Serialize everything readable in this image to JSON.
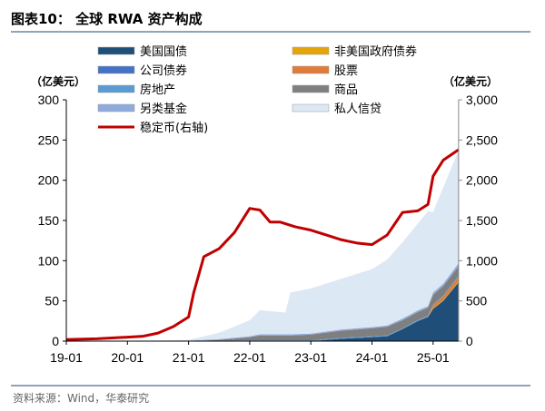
{
  "title": "图表10：  全球 RWA 资产构成",
  "source": "资料来源：Wind，华泰研究",
  "chart_data": {
    "type": "area",
    "left_unit": "（亿美元）",
    "right_unit": "（亿美元）",
    "ylim_left": [
      0,
      300
    ],
    "ylim_right": [
      0,
      3000
    ],
    "yticks_left": [
      "0",
      "50",
      "100",
      "150",
      "200",
      "250",
      "300"
    ],
    "yticks_right": [
      "0",
      "500",
      "1,000",
      "1,500",
      "2,000",
      "2,500",
      "3,000"
    ],
    "xticks": [
      "19-01",
      "20-01",
      "21-01",
      "22-01",
      "23-01",
      "24-01",
      "25-01"
    ],
    "grid": false,
    "legend_position": "top",
    "x": [
      "2019-01",
      "2020-01",
      "2021-01",
      "2021-07",
      "2022-01",
      "2022-03",
      "2022-08",
      "2022-09",
      "2023-01",
      "2023-07",
      "2024-01",
      "2024-04",
      "2024-07",
      "2024-10",
      "2024-12",
      "2025-01",
      "2025-03",
      "2025-06"
    ],
    "series": [
      {
        "name": "美国国债",
        "color": "#1f4e79",
        "values": [
          0,
          0,
          0,
          0,
          0,
          0,
          0,
          0,
          0,
          3,
          5,
          6,
          15,
          25,
          30,
          40,
          50,
          73
        ]
      },
      {
        "name": "非美国政府债券",
        "color": "#e5a50a",
        "values": [
          0,
          0,
          0,
          0,
          0,
          0,
          0,
          0,
          0,
          0,
          0,
          0,
          0,
          0,
          0.3,
          1,
          1,
          1.5
        ]
      },
      {
        "name": "公司债券",
        "color": "#4472c4",
        "values": [
          0,
          0,
          0,
          0,
          0,
          0,
          0,
          0,
          0,
          0,
          0,
          0,
          0,
          0.2,
          0.3,
          0.5,
          0.5,
          0.5
        ]
      },
      {
        "name": "股票",
        "color": "#e07b39",
        "values": [
          0,
          0,
          0,
          0,
          0,
          0,
          0,
          0,
          0,
          0,
          0,
          0,
          0,
          0,
          0,
          3,
          4,
          5
        ]
      },
      {
        "name": "房地产",
        "color": "#5b9bd5",
        "values": [
          0,
          0,
          0,
          0.5,
          1,
          1,
          1,
          1,
          1,
          1,
          1,
          1,
          1,
          1,
          1,
          1,
          1,
          1
        ]
      },
      {
        "name": "商品",
        "color": "#7f7f7f",
        "values": [
          0,
          0,
          0,
          1,
          4,
          6,
          6,
          6,
          7,
          9,
          10,
          11,
          10,
          10,
          10,
          12,
          12,
          12
        ]
      },
      {
        "name": "另类基金",
        "color": "#8faadc",
        "values": [
          0,
          0,
          0.5,
          1,
          1,
          1.5,
          1.5,
          1.5,
          1.5,
          1.5,
          1.5,
          1.5,
          2,
          2,
          2,
          3,
          3,
          4
        ]
      },
      {
        "name": "私人信贷",
        "color": "#dde8f5",
        "values": [
          0,
          0,
          1,
          8,
          20,
          30,
          27,
          52,
          56,
          63,
          72,
          82,
          95,
          108,
          118,
          100,
          120,
          140
        ]
      }
    ],
    "line": {
      "name": "稳定币(右轴)",
      "color": "#c00000",
      "axis": "right",
      "x": [
        "2019-01",
        "2019-07",
        "2020-01",
        "2020-04",
        "2020-07",
        "2020-10",
        "2021-01",
        "2021-02",
        "2021-04",
        "2021-07",
        "2021-10",
        "2022-01",
        "2022-03",
        "2022-05",
        "2022-07",
        "2022-10",
        "2023-01",
        "2023-04",
        "2023-07",
        "2023-10",
        "2024-01",
        "2024-04",
        "2024-07",
        "2024-10",
        "2024-12",
        "2025-01",
        "2025-03",
        "2025-06"
      ],
      "values": [
        20,
        30,
        50,
        60,
        100,
        180,
        300,
        600,
        1050,
        1150,
        1350,
        1650,
        1630,
        1480,
        1480,
        1420,
        1380,
        1320,
        1260,
        1220,
        1200,
        1320,
        1600,
        1620,
        1700,
        2050,
        2250,
        2380
      ]
    }
  }
}
